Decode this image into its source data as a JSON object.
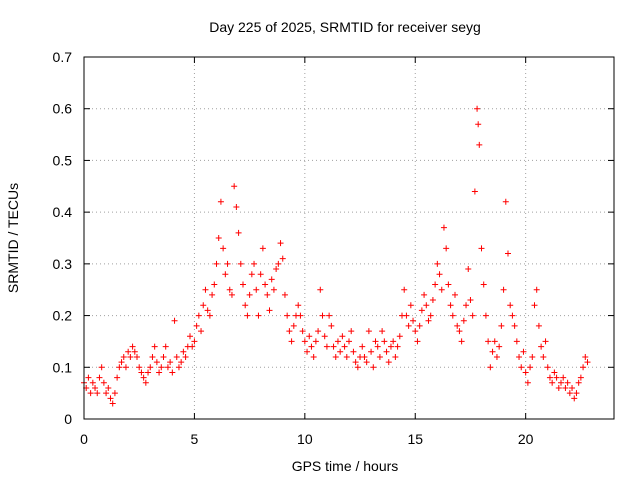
{
  "chart_data": {
    "type": "scatter",
    "title": "Day 225 of 2025, SRMTID for receiver seyg",
    "xlabel": "GPS time / hours",
    "ylabel": "SRMTID / TECUs",
    "xlim": [
      0,
      24
    ],
    "ylim": [
      0,
      0.7
    ],
    "xticks": [
      0,
      5,
      10,
      15,
      20
    ],
    "yticks": [
      0,
      0.1,
      0.2,
      0.3,
      0.4,
      0.5,
      0.6,
      0.7
    ],
    "xtick_labels": [
      "0",
      "5",
      "10",
      "15",
      "20"
    ],
    "ytick_labels": [
      "0",
      "0.1",
      "0.2",
      "0.3",
      "0.4",
      "0.5",
      "0.6",
      "0.7"
    ],
    "grid": true,
    "marker": "+",
    "color": "#ff0000",
    "series": [
      {
        "name": "SRMTID",
        "points": [
          [
            0.0,
            0.07
          ],
          [
            0.1,
            0.06
          ],
          [
            0.2,
            0.08
          ],
          [
            0.3,
            0.05
          ],
          [
            0.4,
            0.07
          ],
          [
            0.5,
            0.06
          ],
          [
            0.6,
            0.05
          ],
          [
            0.7,
            0.08
          ],
          [
            0.8,
            0.1
          ],
          [
            0.9,
            0.07
          ],
          [
            1.0,
            0.05
          ],
          [
            1.1,
            0.06
          ],
          [
            1.2,
            0.04
          ],
          [
            1.3,
            0.03
          ],
          [
            1.4,
            0.05
          ],
          [
            1.5,
            0.08
          ],
          [
            1.6,
            0.1
          ],
          [
            1.7,
            0.11
          ],
          [
            1.8,
            0.12
          ],
          [
            1.9,
            0.1
          ],
          [
            2.0,
            0.13
          ],
          [
            2.1,
            0.12
          ],
          [
            2.2,
            0.14
          ],
          [
            2.3,
            0.13
          ],
          [
            2.4,
            0.12
          ],
          [
            2.5,
            0.1
          ],
          [
            2.6,
            0.09
          ],
          [
            2.7,
            0.08
          ],
          [
            2.8,
            0.07
          ],
          [
            2.9,
            0.09
          ],
          [
            3.0,
            0.1
          ],
          [
            3.1,
            0.12
          ],
          [
            3.2,
            0.14
          ],
          [
            3.3,
            0.11
          ],
          [
            3.4,
            0.09
          ],
          [
            3.5,
            0.1
          ],
          [
            3.6,
            0.12
          ],
          [
            3.7,
            0.14
          ],
          [
            3.8,
            0.1
          ],
          [
            3.9,
            0.11
          ],
          [
            4.0,
            0.09
          ],
          [
            4.1,
            0.19
          ],
          [
            4.2,
            0.12
          ],
          [
            4.3,
            0.1
          ],
          [
            4.4,
            0.11
          ],
          [
            4.5,
            0.13
          ],
          [
            4.6,
            0.12
          ],
          [
            4.7,
            0.14
          ],
          [
            4.8,
            0.16
          ],
          [
            4.9,
            0.14
          ],
          [
            5.0,
            0.15
          ],
          [
            5.1,
            0.18
          ],
          [
            5.2,
            0.2
          ],
          [
            5.3,
            0.17
          ],
          [
            5.4,
            0.22
          ],
          [
            5.5,
            0.25
          ],
          [
            5.6,
            0.21
          ],
          [
            5.7,
            0.2
          ],
          [
            5.8,
            0.24
          ],
          [
            5.9,
            0.26
          ],
          [
            6.0,
            0.3
          ],
          [
            6.1,
            0.35
          ],
          [
            6.2,
            0.42
          ],
          [
            6.3,
            0.33
          ],
          [
            6.4,
            0.28
          ],
          [
            6.5,
            0.3
          ],
          [
            6.6,
            0.25
          ],
          [
            6.7,
            0.24
          ],
          [
            6.8,
            0.45
          ],
          [
            6.9,
            0.41
          ],
          [
            7.0,
            0.36
          ],
          [
            7.1,
            0.3
          ],
          [
            7.2,
            0.26
          ],
          [
            7.3,
            0.22
          ],
          [
            7.4,
            0.2
          ],
          [
            7.5,
            0.24
          ],
          [
            7.6,
            0.28
          ],
          [
            7.7,
            0.3
          ],
          [
            7.8,
            0.25
          ],
          [
            7.9,
            0.2
          ],
          [
            8.0,
            0.28
          ],
          [
            8.1,
            0.33
          ],
          [
            8.2,
            0.26
          ],
          [
            8.3,
            0.24
          ],
          [
            8.4,
            0.21
          ],
          [
            8.5,
            0.27
          ],
          [
            8.6,
            0.25
          ],
          [
            8.7,
            0.29
          ],
          [
            8.8,
            0.3
          ],
          [
            8.9,
            0.34
          ],
          [
            9.0,
            0.31
          ],
          [
            9.1,
            0.24
          ],
          [
            9.2,
            0.2
          ],
          [
            9.3,
            0.17
          ],
          [
            9.4,
            0.15
          ],
          [
            9.5,
            0.18
          ],
          [
            9.6,
            0.2
          ],
          [
            9.7,
            0.22
          ],
          [
            9.8,
            0.2
          ],
          [
            9.9,
            0.17
          ],
          [
            10.0,
            0.15
          ],
          [
            10.1,
            0.13
          ],
          [
            10.2,
            0.16
          ],
          [
            10.3,
            0.14
          ],
          [
            10.4,
            0.12
          ],
          [
            10.5,
            0.15
          ],
          [
            10.6,
            0.17
          ],
          [
            10.7,
            0.25
          ],
          [
            10.8,
            0.2
          ],
          [
            10.9,
            0.16
          ],
          [
            11.0,
            0.14
          ],
          [
            11.1,
            0.2
          ],
          [
            11.2,
            0.18
          ],
          [
            11.3,
            0.14
          ],
          [
            11.4,
            0.12
          ],
          [
            11.5,
            0.15
          ],
          [
            11.6,
            0.13
          ],
          [
            11.7,
            0.16
          ],
          [
            11.8,
            0.14
          ],
          [
            11.9,
            0.12
          ],
          [
            12.0,
            0.15
          ],
          [
            12.1,
            0.17
          ],
          [
            12.2,
            0.13
          ],
          [
            12.3,
            0.11
          ],
          [
            12.4,
            0.1
          ],
          [
            12.5,
            0.12
          ],
          [
            12.6,
            0.14
          ],
          [
            12.7,
            0.12
          ],
          [
            12.8,
            0.11
          ],
          [
            12.9,
            0.17
          ],
          [
            13.0,
            0.13
          ],
          [
            13.1,
            0.1
          ],
          [
            13.2,
            0.15
          ],
          [
            13.3,
            0.14
          ],
          [
            13.4,
            0.12
          ],
          [
            13.5,
            0.17
          ],
          [
            13.6,
            0.15
          ],
          [
            13.7,
            0.13
          ],
          [
            13.8,
            0.11
          ],
          [
            13.9,
            0.14
          ],
          [
            14.0,
            0.15
          ],
          [
            14.1,
            0.12
          ],
          [
            14.2,
            0.14
          ],
          [
            14.3,
            0.16
          ],
          [
            14.4,
            0.2
          ],
          [
            14.5,
            0.25
          ],
          [
            14.6,
            0.2
          ],
          [
            14.7,
            0.18
          ],
          [
            14.8,
            0.22
          ],
          [
            14.9,
            0.19
          ],
          [
            15.0,
            0.17
          ],
          [
            15.1,
            0.15
          ],
          [
            15.2,
            0.18
          ],
          [
            15.3,
            0.21
          ],
          [
            15.4,
            0.24
          ],
          [
            15.5,
            0.22
          ],
          [
            15.6,
            0.19
          ],
          [
            15.7,
            0.2
          ],
          [
            15.8,
            0.23
          ],
          [
            15.9,
            0.26
          ],
          [
            16.0,
            0.3
          ],
          [
            16.1,
            0.28
          ],
          [
            16.2,
            0.25
          ],
          [
            16.3,
            0.37
          ],
          [
            16.4,
            0.33
          ],
          [
            16.5,
            0.26
          ],
          [
            16.6,
            0.22
          ],
          [
            16.7,
            0.2
          ],
          [
            16.8,
            0.24
          ],
          [
            16.9,
            0.18
          ],
          [
            17.0,
            0.17
          ],
          [
            17.1,
            0.15
          ],
          [
            17.2,
            0.19
          ],
          [
            17.3,
            0.22
          ],
          [
            17.4,
            0.29
          ],
          [
            17.5,
            0.23
          ],
          [
            17.6,
            0.2
          ],
          [
            17.7,
            0.44
          ],
          [
            17.8,
            0.6
          ],
          [
            17.85,
            0.57
          ],
          [
            17.9,
            0.53
          ],
          [
            18.0,
            0.33
          ],
          [
            18.1,
            0.26
          ],
          [
            18.2,
            0.2
          ],
          [
            18.3,
            0.15
          ],
          [
            18.4,
            0.1
          ],
          [
            18.5,
            0.13
          ],
          [
            18.6,
            0.15
          ],
          [
            18.7,
            0.12
          ],
          [
            18.8,
            0.14
          ],
          [
            18.9,
            0.18
          ],
          [
            19.0,
            0.25
          ],
          [
            19.1,
            0.42
          ],
          [
            19.2,
            0.32
          ],
          [
            19.3,
            0.22
          ],
          [
            19.4,
            0.2
          ],
          [
            19.5,
            0.18
          ],
          [
            19.6,
            0.15
          ],
          [
            19.7,
            0.12
          ],
          [
            19.8,
            0.1
          ],
          [
            19.9,
            0.13
          ],
          [
            20.0,
            0.09
          ],
          [
            20.1,
            0.07
          ],
          [
            20.2,
            0.1
          ],
          [
            20.3,
            0.12
          ],
          [
            20.4,
            0.22
          ],
          [
            20.5,
            0.25
          ],
          [
            20.6,
            0.18
          ],
          [
            20.7,
            0.14
          ],
          [
            20.8,
            0.12
          ],
          [
            20.9,
            0.15
          ],
          [
            21.0,
            0.1
          ],
          [
            21.1,
            0.08
          ],
          [
            21.2,
            0.07
          ],
          [
            21.3,
            0.09
          ],
          [
            21.4,
            0.08
          ],
          [
            21.5,
            0.06
          ],
          [
            21.6,
            0.07
          ],
          [
            21.7,
            0.08
          ],
          [
            21.8,
            0.06
          ],
          [
            21.9,
            0.07
          ],
          [
            22.0,
            0.05
          ],
          [
            22.1,
            0.06
          ],
          [
            22.2,
            0.04
          ],
          [
            22.3,
            0.05
          ],
          [
            22.4,
            0.07
          ],
          [
            22.5,
            0.08
          ],
          [
            22.6,
            0.1
          ],
          [
            22.7,
            0.12
          ],
          [
            22.8,
            0.11
          ]
        ]
      }
    ]
  }
}
